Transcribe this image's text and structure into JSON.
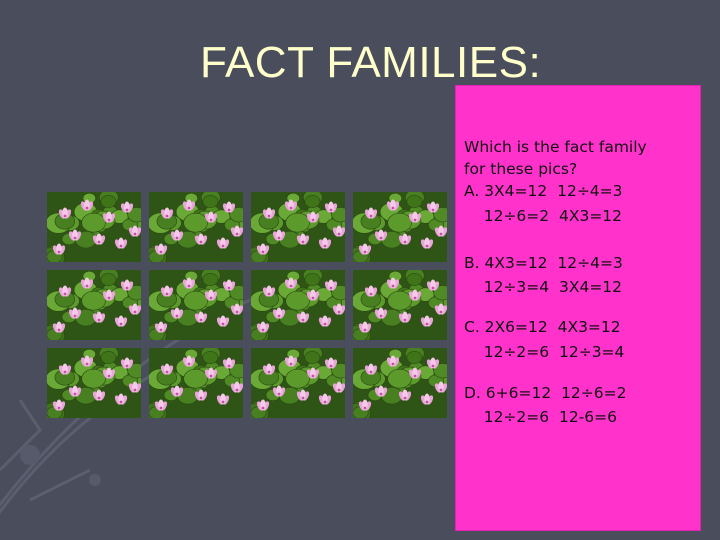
{
  "slide": {
    "title": "FACT FAMILIES:",
    "background_color": "#4a4d5c",
    "box_color": "#ff33cc",
    "title_color": "#ffffcc"
  },
  "question": {
    "line1": "Which is the fact family",
    "line2": "for these pics?",
    "a_line1": "A. 3X4=12  12÷4=3",
    "a_line2": "    12÷6=2  4X3=12",
    "b_line1": "B. 4X3=12  12÷4=3",
    "b_line2": "    12÷3=4  3X4=12",
    "c_line1": "C. 2X6=12  4X3=12",
    "c_line2": "    12÷2=6  12÷3=4",
    "d_line1": "D. 6+6=12  12÷6=2",
    "d_line2": "    12÷2=6  12-6=6"
  },
  "picture_grid": {
    "rows": 3,
    "columns": 4,
    "picture": "water-lily-photo"
  }
}
